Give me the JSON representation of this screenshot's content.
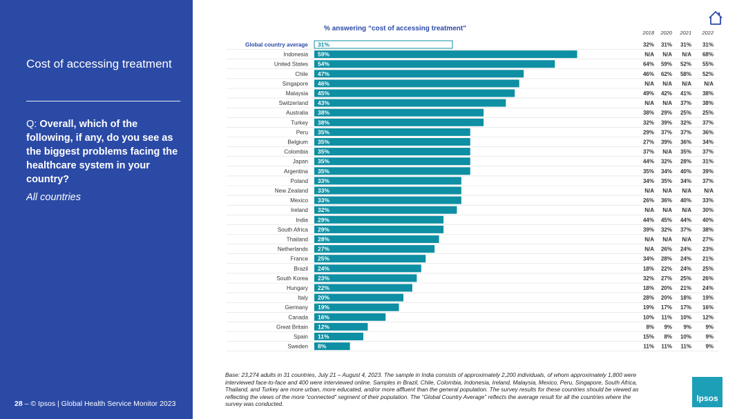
{
  "sidebar": {
    "title": "Cost of accessing treatment",
    "question_prefix": "Q: ",
    "question_bold": "Overall, which of the following, if any, do you see as the biggest problems facing the healthcare system in your country?",
    "subtitle": "All countries",
    "footer_page": "28",
    "footer_text": " – © Ipsos | Global Health Service Monitor 2023"
  },
  "icons": {
    "home": "home-icon"
  },
  "base_note": "Base: 23,274 adults in 31 countries, July 21 – August 4, 2023. The sample in India consists of approximately 2,200 individuals, of whom approximately 1,800 were interviewed face-to-face and 400 were interviewed online. Samples in Brazil, Chile, Colombia, Indonesia, Ireland, Malaysia, Mexico, Peru, Singapore, South Africa, Thailand, and Turkey are more urban, more educated, and/or more affluent than the general population. The survey results for these countries should be viewed as reflecting the views of the more “connected” segment of their population. The “Global Country Average” reflects the average result for all the countries where the survey was conducted.",
  "logo_text": "Ipsos",
  "colors": {
    "sidebar": "#2b4aa6",
    "bar": "#0e8fa3",
    "average_bar_border": "#0e8fa3",
    "title": "#2b4aa6"
  },
  "chart_data": {
    "type": "bar",
    "orientation": "horizontal",
    "title": "% answering “cost of accessing treatment\"",
    "value_suffix": "%",
    "xlim": [
      0,
      100
    ],
    "grid": false,
    "categories": [
      "Global country average",
      "Indonesia",
      "United States",
      "Chile",
      "Singapore",
      "Malaysia",
      "Switzerland",
      "Australia",
      "Turkey",
      "Peru",
      "Belgium",
      "Colombia",
      "Japan",
      "Argentina",
      "Poland",
      "New Zealand",
      "Mexico",
      "Ireland",
      "India",
      "South Africa",
      "Thailand",
      "Netherlands",
      "France",
      "Brazil",
      "South Korea",
      "Hungary",
      "Italy",
      "Germany",
      "Canada",
      "Great Britain",
      "Spain",
      "Sweden"
    ],
    "values": [
      31,
      59,
      54,
      47,
      46,
      45,
      43,
      38,
      38,
      35,
      35,
      35,
      35,
      35,
      33,
      33,
      33,
      32,
      29,
      29,
      28,
      27,
      25,
      24,
      23,
      22,
      20,
      19,
      16,
      12,
      11,
      8
    ],
    "table": {
      "columns": [
        "2018",
        "2020",
        "2021",
        "2022"
      ],
      "rows": [
        [
          "32%",
          "31%",
          "31%",
          "31%"
        ],
        [
          "N/A",
          "N/A",
          "N/A",
          "68%"
        ],
        [
          "64%",
          "59%",
          "52%",
          "55%"
        ],
        [
          "46%",
          "62%",
          "58%",
          "52%"
        ],
        [
          "N/A",
          "N/A",
          "N/A",
          "N/A"
        ],
        [
          "49%",
          "42%",
          "41%",
          "38%"
        ],
        [
          "N/A",
          "N/A",
          "37%",
          "38%"
        ],
        [
          "38%",
          "29%",
          "25%",
          "25%"
        ],
        [
          "32%",
          "39%",
          "32%",
          "37%"
        ],
        [
          "29%",
          "37%",
          "37%",
          "36%"
        ],
        [
          "27%",
          "39%",
          "36%",
          "34%"
        ],
        [
          "37%",
          "N/A",
          "35%",
          "37%"
        ],
        [
          "44%",
          "32%",
          "28%",
          "31%"
        ],
        [
          "35%",
          "34%",
          "40%",
          "39%"
        ],
        [
          "34%",
          "35%",
          "34%",
          "37%"
        ],
        [
          "N/A",
          "N/A",
          "N/A",
          "N/A"
        ],
        [
          "26%",
          "36%",
          "40%",
          "33%"
        ],
        [
          "N/A",
          "N/A",
          "N/A",
          "30%"
        ],
        [
          "44%",
          "45%",
          "44%",
          "40%"
        ],
        [
          "39%",
          "32%",
          "37%",
          "38%"
        ],
        [
          "N/A",
          "N/A",
          "N/A",
          "27%"
        ],
        [
          "N/A",
          "26%",
          "24%",
          "23%"
        ],
        [
          "34%",
          "28%",
          "24%",
          "21%"
        ],
        [
          "18%",
          "22%",
          "24%",
          "25%"
        ],
        [
          "32%",
          "27%",
          "25%",
          "26%"
        ],
        [
          "18%",
          "20%",
          "21%",
          "24%"
        ],
        [
          "28%",
          "20%",
          "18%",
          "19%"
        ],
        [
          "19%",
          "17%",
          "17%",
          "16%"
        ],
        [
          "10%",
          "11%",
          "10%",
          "12%"
        ],
        [
          "8%",
          "9%",
          "9%",
          "9%"
        ],
        [
          "15%",
          "8%",
          "10%",
          "9%"
        ],
        [
          "11%",
          "11%",
          "11%",
          "9%"
        ]
      ]
    }
  }
}
